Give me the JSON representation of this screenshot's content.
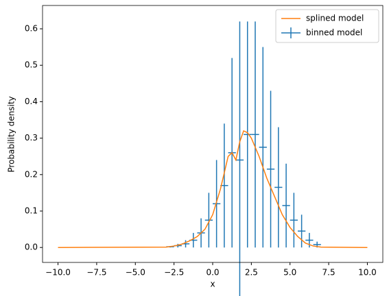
{
  "chart_data": {
    "type": "errorbar",
    "xlabel": "x",
    "ylabel": "Probability density",
    "xlim": [
      -11,
      11
    ],
    "xticks": [
      {
        "value": -10,
        "label": "−10.0"
      },
      {
        "value": -7.5,
        "label": "−7.5"
      },
      {
        "value": -5,
        "label": "−5.0"
      },
      {
        "value": -2.5,
        "label": "−2.5"
      },
      {
        "value": 0,
        "label": "0.0"
      },
      {
        "value": 2.5,
        "label": "2.5"
      },
      {
        "value": 5,
        "label": "5.0"
      },
      {
        "value": 7.5,
        "label": "7.5"
      },
      {
        "value": 10,
        "label": "10.0"
      }
    ],
    "ylim": [
      -0.041,
      0.664
    ],
    "yticks": [
      {
        "value": 0,
        "label": "0.0"
      },
      {
        "value": 0.1,
        "label": "0.1"
      },
      {
        "value": 0.2,
        "label": "0.2"
      },
      {
        "value": 0.3,
        "label": "0.3"
      },
      {
        "value": 0.4,
        "label": "0.4"
      },
      {
        "value": 0.5,
        "label": "0.5"
      },
      {
        "value": 0.6,
        "label": "0.6"
      }
    ],
    "legend": "upper right",
    "series": [
      {
        "name": "splined model",
        "style": "line",
        "color": "#ff7f0e",
        "x": [
          -10,
          -3,
          -2.5,
          -2,
          -1.5,
          -1,
          -0.5,
          0,
          0.5,
          1,
          1.25,
          1.5,
          1.75,
          2,
          2.25,
          2.5,
          3,
          3.5,
          4,
          4.5,
          5,
          5.5,
          6,
          6.5,
          7,
          10
        ],
        "values": [
          0,
          0.001,
          0.004,
          0.009,
          0.018,
          0.03,
          0.05,
          0.09,
          0.16,
          0.25,
          0.26,
          0.24,
          0.29,
          0.32,
          0.315,
          0.3,
          0.25,
          0.19,
          0.14,
          0.09,
          0.055,
          0.03,
          0.012,
          0.004,
          0.001,
          0
        ]
      },
      {
        "name": "binned model",
        "style": "errorbar",
        "color": "#1f77b4",
        "bin_width": 0.5,
        "x": [
          -2.75,
          -2.25,
          -1.75,
          -1.25,
          -0.75,
          -0.25,
          0.25,
          0.75,
          1.25,
          1.75,
          2.25,
          2.75,
          3.25,
          3.75,
          4.25,
          4.75,
          5.25,
          5.75,
          6.25,
          6.75
        ],
        "values": [
          0.002,
          0.005,
          0.01,
          0.02,
          0.04,
          0.075,
          0.12,
          0.17,
          0.26,
          0.24,
          0.31,
          0.31,
          0.275,
          0.215,
          0.165,
          0.115,
          0.075,
          0.045,
          0.02,
          0.008
        ],
        "errors": [
          0.002,
          0.005,
          0.01,
          0.02,
          0.04,
          0.075,
          0.12,
          0.17,
          0.26,
          0.38,
          0.31,
          0.31,
          0.275,
          0.215,
          0.165,
          0.115,
          0.075,
          0.045,
          0.02,
          0.008
        ]
      }
    ]
  }
}
